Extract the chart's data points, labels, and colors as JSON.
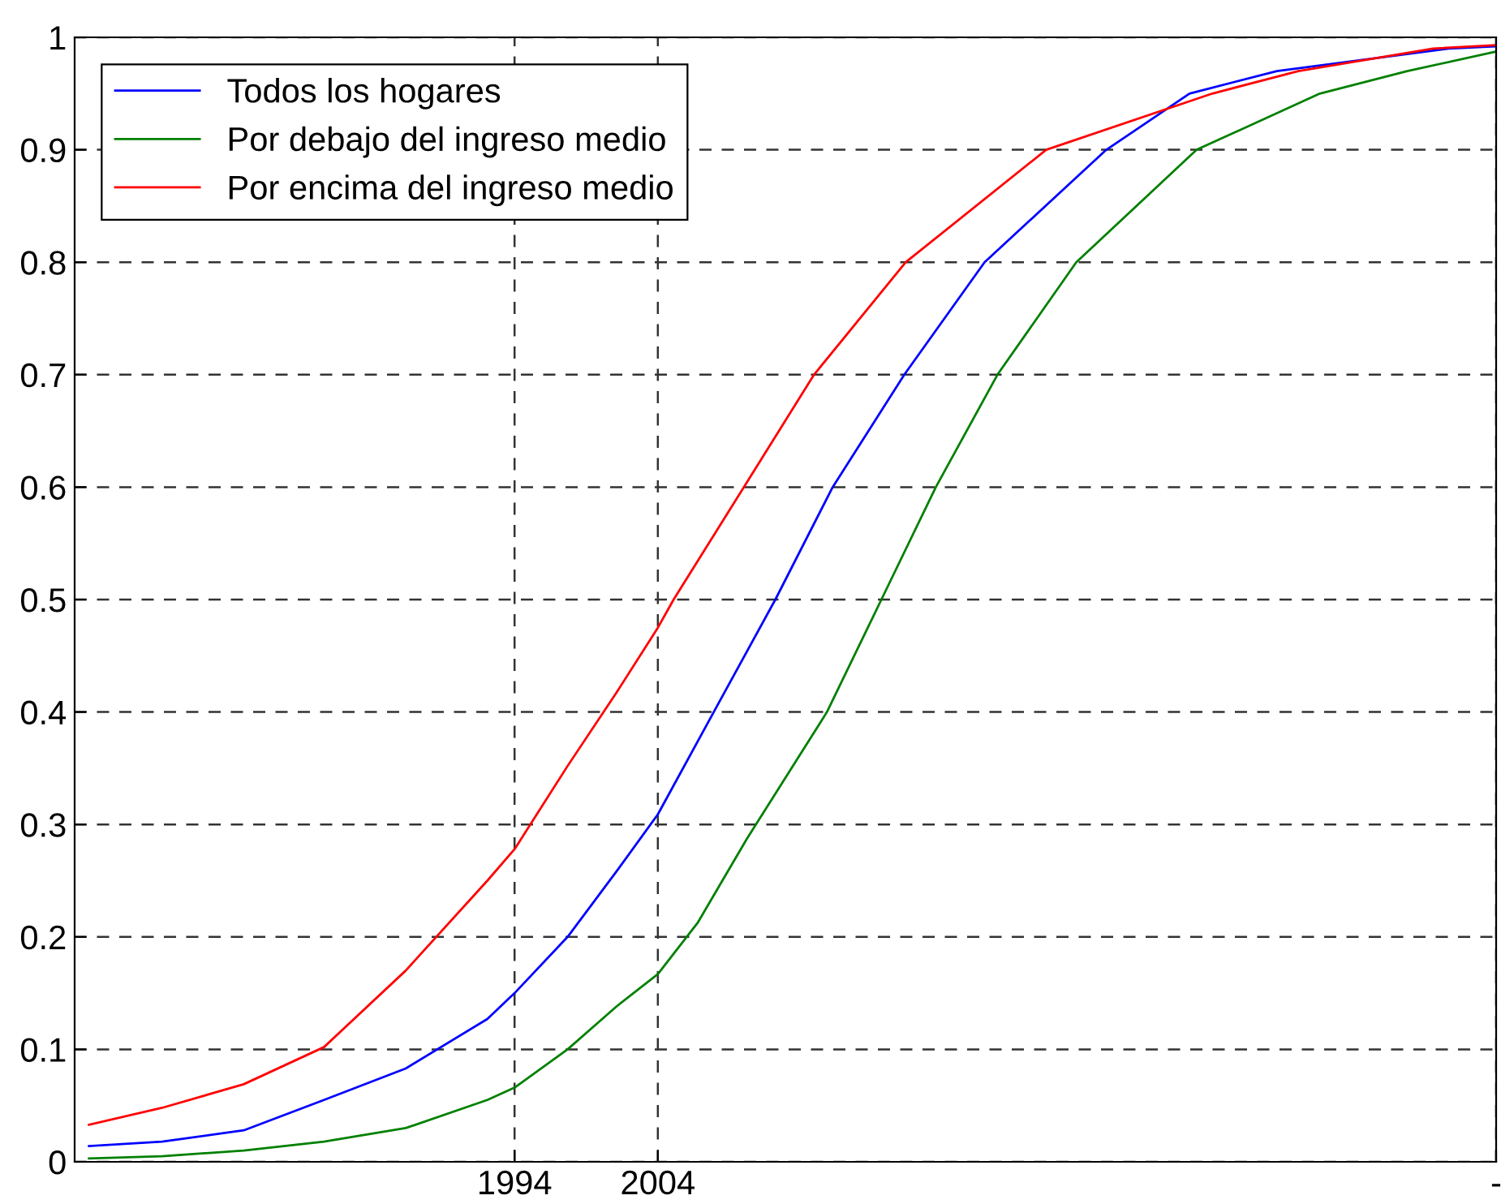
{
  "chart_data": {
    "type": "line",
    "xlim": [
      1963.3,
      2062.5
    ],
    "xticks": [
      1994,
      2004,
      {
        "value": 2062.5,
        "label": "-"
      }
    ],
    "ylim": [
      0,
      1
    ],
    "yticks": [
      0,
      0.1,
      0.2,
      0.3,
      0.4,
      0.5,
      0.6,
      0.7,
      0.8,
      0.9,
      1
    ],
    "grid": true,
    "legend": "top left",
    "line_style": "solid",
    "marker": "none",
    "series": [
      {
        "name": "Todos los hogares",
        "color": "#0000ff",
        "x": [
          1964.3,
          1969.4,
          1975.1,
          1980.7,
          1986.4,
          1992.1,
          1994,
          1997.7,
          2001.1,
          2004,
          2007.9,
          2012.2,
          2016.2,
          2021.2,
          2026.8,
          2035.3,
          2041.1,
          2047.2,
          2059.2,
          2062.4
        ],
        "values": [
          0.014,
          0.018,
          0.028,
          0.055,
          0.083,
          0.127,
          0.15,
          0.2,
          0.258,
          0.309,
          0.4,
          0.5,
          0.6,
          0.7,
          0.8,
          0.9,
          0.95,
          0.97,
          0.99,
          0.992
        ]
      },
      {
        "name": "Por debajo del ingreso medio",
        "color": "#008000",
        "x": [
          1964.3,
          1969.4,
          1975.1,
          1980.7,
          1986.4,
          1992.1,
          1994,
          1997.7,
          2001.1,
          2004,
          2006.8,
          2010.2,
          2015.8,
          2019.6,
          2023.4,
          2027.7,
          2033.2,
          2041.6,
          2050.2,
          2056.3,
          2062.4
        ],
        "values": [
          0.003,
          0.005,
          0.01,
          0.018,
          0.03,
          0.055,
          0.066,
          0.1,
          0.138,
          0.167,
          0.213,
          0.287,
          0.4,
          0.5,
          0.6,
          0.7,
          0.8,
          0.9,
          0.95,
          0.97,
          0.987
        ]
      },
      {
        "name": "Por encima del ingreso medio",
        "color": "#ff0000",
        "x": [
          1964.3,
          1969.4,
          1975.1,
          1980.7,
          1986.4,
          1992.1,
          1994,
          1997.7,
          2001.1,
          2004,
          2005.1,
          2010.0,
          2014.9,
          2021.3,
          2031.1,
          2042.7,
          2048.7,
          2058.1,
          2062.4
        ],
        "values": [
          0.033,
          0.048,
          0.069,
          0.102,
          0.17,
          0.25,
          0.278,
          0.352,
          0.417,
          0.475,
          0.5,
          0.6,
          0.7,
          0.8,
          0.9,
          0.95,
          0.97,
          0.99,
          0.993
        ]
      }
    ]
  }
}
